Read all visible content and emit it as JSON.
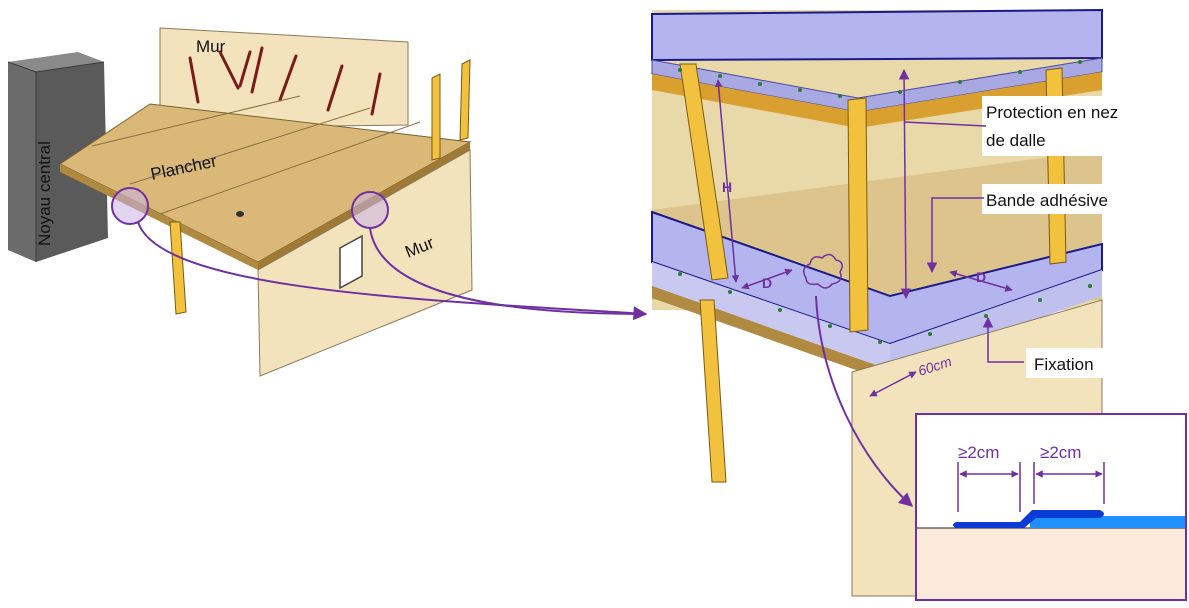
{
  "labels": {
    "core": "Noyau central",
    "wall_back": "Mur",
    "floor": "Plancher",
    "wall_side": "Mur",
    "slab_edge_protection_line1": "Protection en nez",
    "slab_edge_protection_line2": "de dalle",
    "adhesive_strip": "Bande adhésive",
    "fixing": "Fixation",
    "height": "H",
    "distance_left": "D",
    "distance_right": "D",
    "spacing": "60cm",
    "overlap_left": "≥2cm",
    "overlap_right": "≥2cm"
  },
  "colors": {
    "accent": "#7030a0",
    "membrane": "#b4b4ee",
    "membrane_edge": "#1a1a8a",
    "timber": "#f2c23e",
    "wood_panel": "#e8d6a8",
    "floor_top": "#d9b878",
    "core": "#6e6e6e",
    "tape_dark": "#0b3bd6",
    "tape_light": "#1e90ff"
  }
}
